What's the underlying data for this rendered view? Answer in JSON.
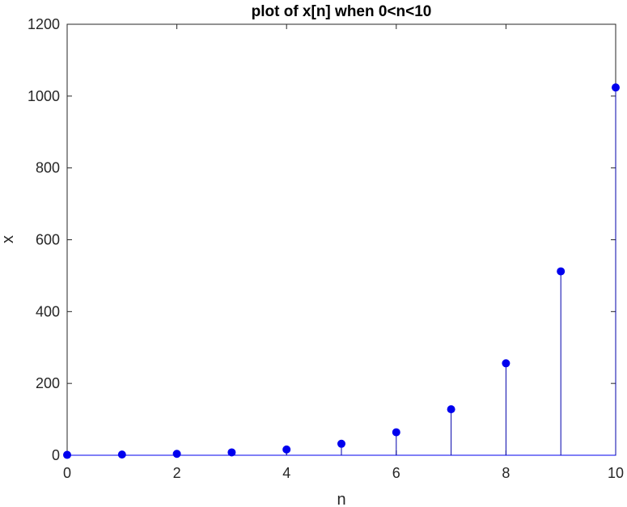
{
  "chart_data": {
    "type": "stem",
    "title": "plot of x[n] when 0<n<10",
    "xlabel": "n",
    "ylabel": "x",
    "xlim": [
      0,
      10
    ],
    "ylim": [
      0,
      1200
    ],
    "xticks": [
      0,
      2,
      4,
      6,
      8,
      10
    ],
    "yticks": [
      0,
      200,
      400,
      600,
      800,
      1000,
      1200
    ],
    "grid": false,
    "box": true,
    "marker": "filled-circle",
    "color": "#0000ee",
    "x": [
      0,
      1,
      2,
      3,
      4,
      5,
      6,
      7,
      8,
      9,
      10
    ],
    "y": [
      1,
      2,
      4,
      8,
      16,
      32,
      64,
      128,
      256,
      512,
      1024
    ]
  }
}
